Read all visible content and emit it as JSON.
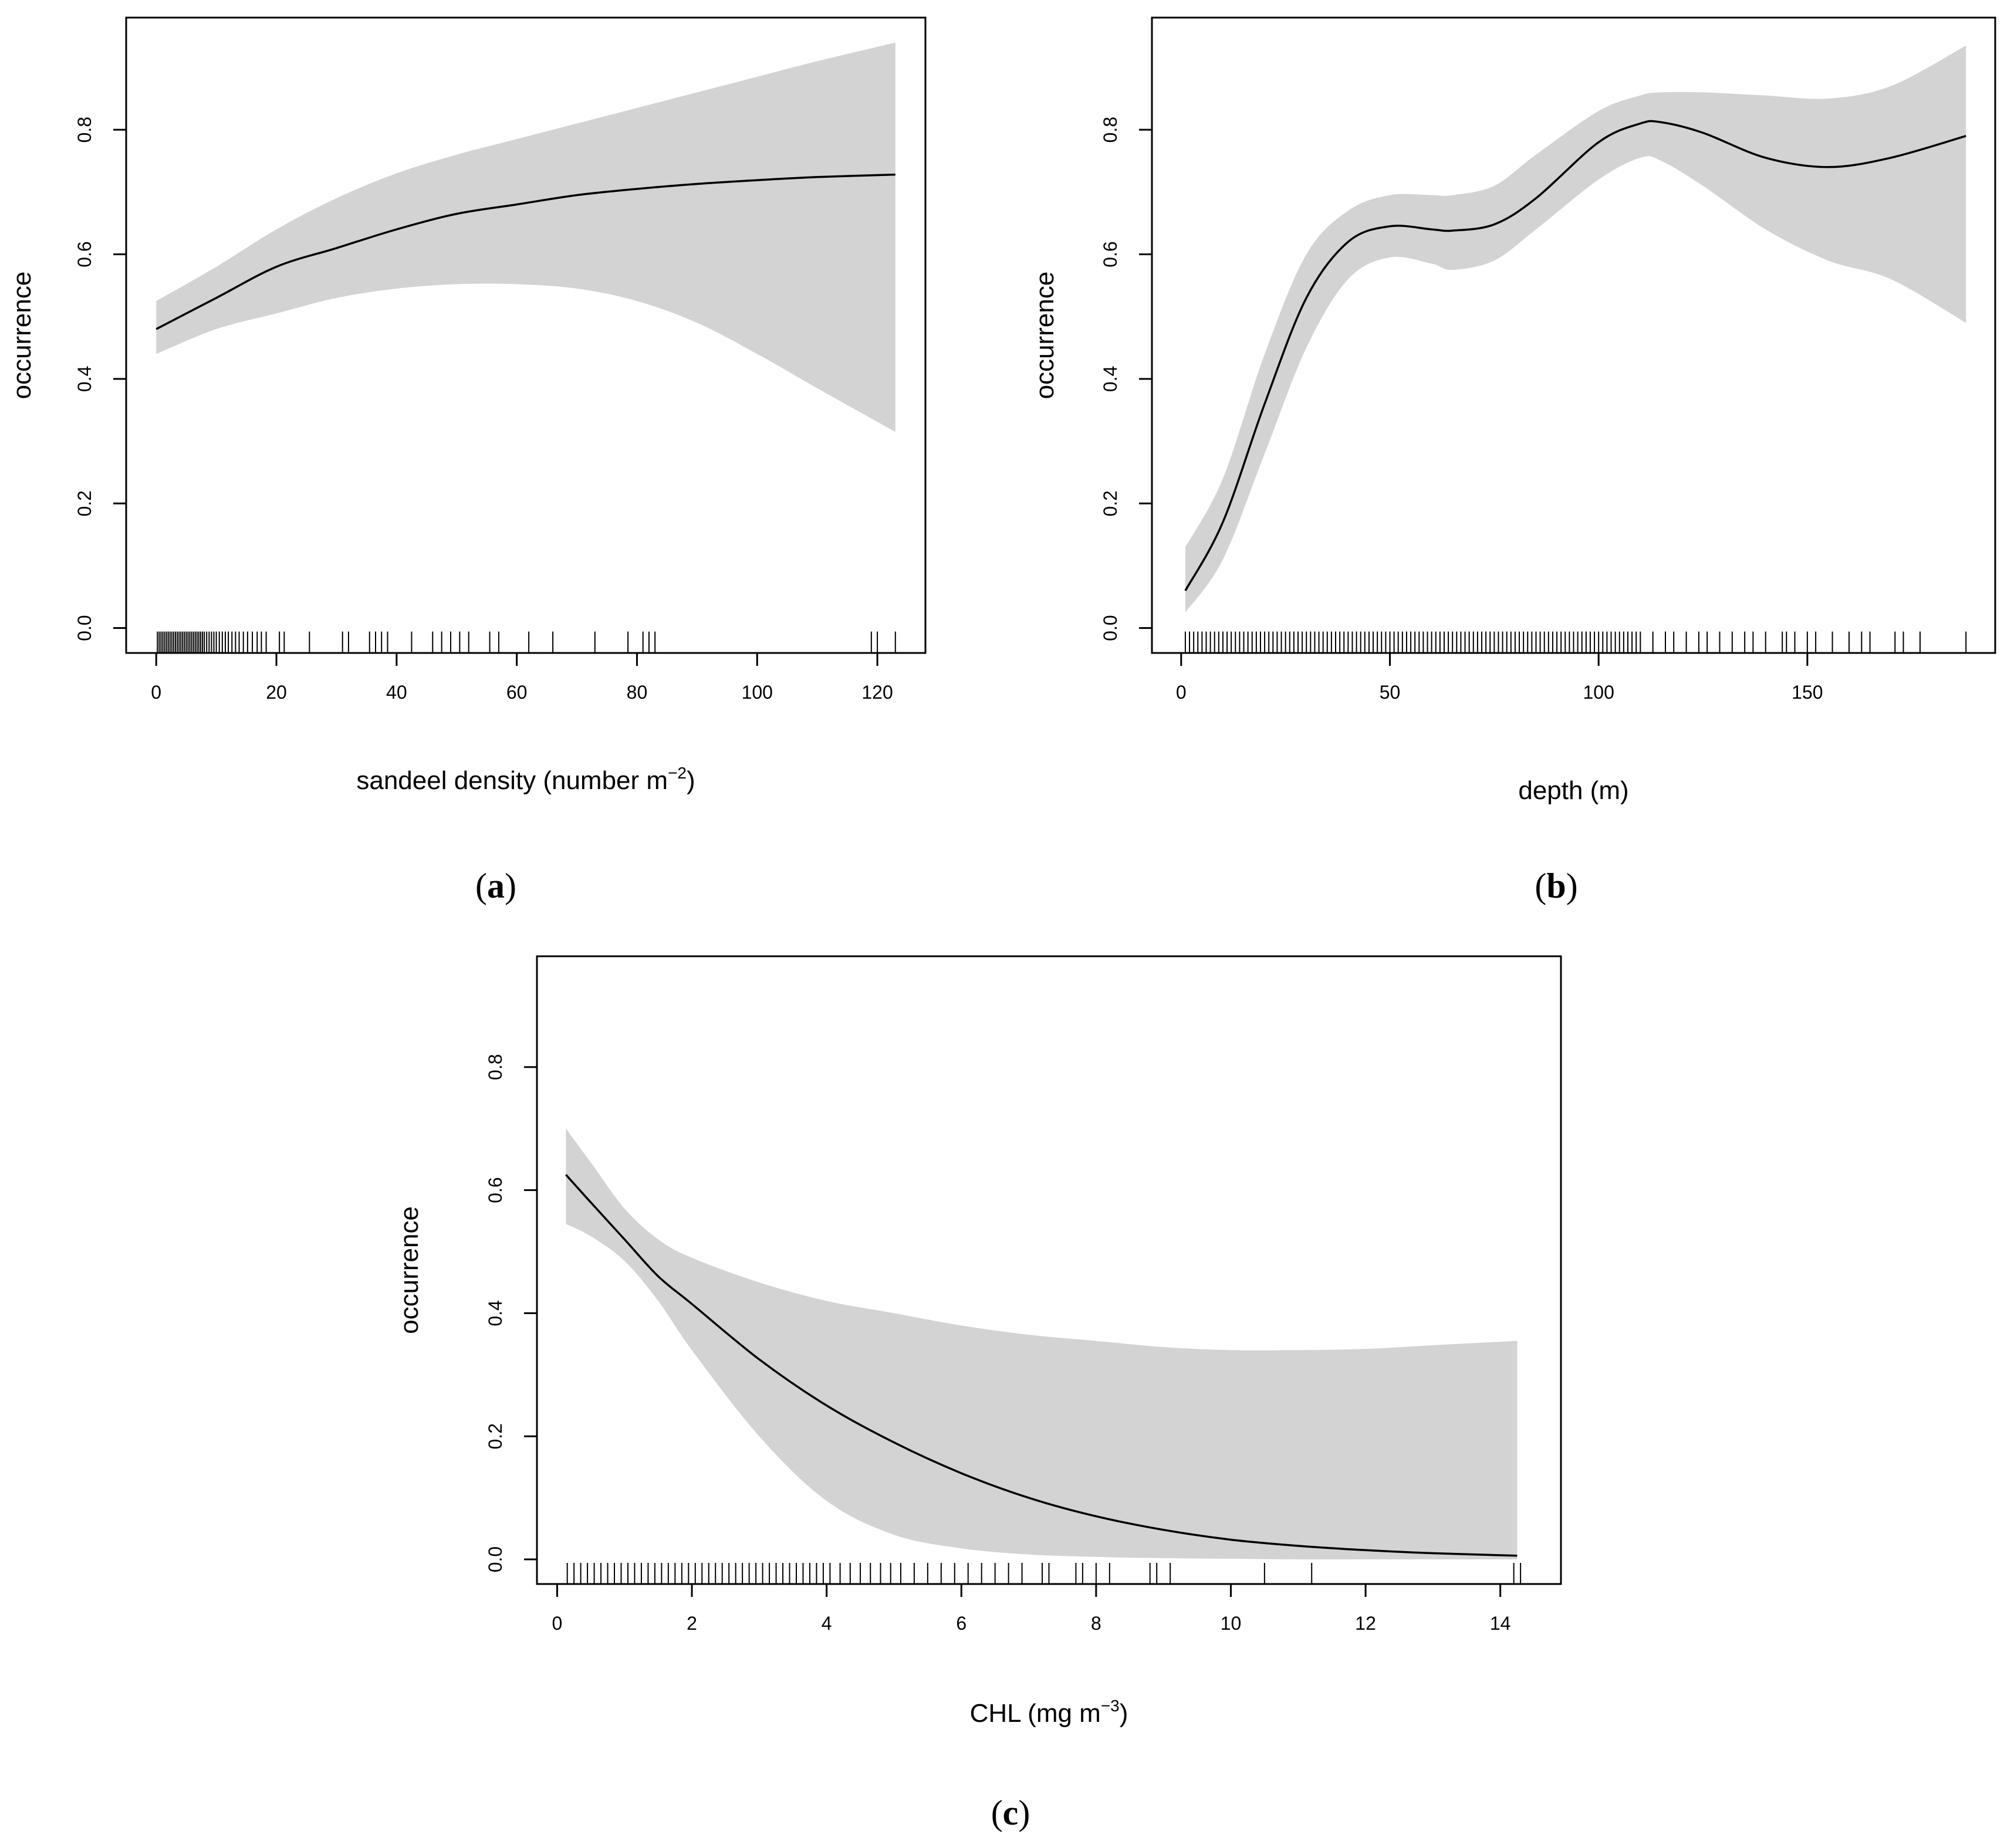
{
  "chart_data": [
    {
      "id": "a",
      "type": "line",
      "panel_label": "a",
      "xlabel": "sandeel density (number m",
      "xlabel_sup": "−2",
      "xlabel_end": ")",
      "ylabel": "occurrence",
      "xlim": [
        -5,
        128
      ],
      "ylim": [
        -0.04,
        0.98
      ],
      "xticks": [
        0,
        20,
        40,
        60,
        80,
        100,
        120
      ],
      "xtick_labels": [
        "0",
        "20",
        "40",
        "60",
        "80",
        "100",
        "120"
      ],
      "yticks": [
        0,
        0.2,
        0.4,
        0.6,
        0.8
      ],
      "ytick_labels": [
        "0.0",
        "0.2",
        "0.4",
        "0.6",
        "0.8"
      ],
      "series": [
        {
          "name": "fit",
          "x": [
            0,
            10,
            20,
            30,
            40,
            50,
            60,
            70,
            80,
            90,
            100,
            110,
            123
          ],
          "y": [
            0.48,
            0.53,
            0.58,
            0.61,
            0.64,
            0.665,
            0.68,
            0.695,
            0.705,
            0.713,
            0.719,
            0.724,
            0.728
          ]
        },
        {
          "name": "upper",
          "x": [
            0,
            10,
            20,
            30,
            40,
            50,
            60,
            70,
            80,
            90,
            100,
            110,
            123
          ],
          "y": [
            0.525,
            0.58,
            0.64,
            0.69,
            0.73,
            0.76,
            0.785,
            0.81,
            0.835,
            0.86,
            0.885,
            0.91,
            0.94
          ]
        },
        {
          "name": "lower",
          "x": [
            0,
            10,
            20,
            30,
            40,
            50,
            60,
            70,
            80,
            90,
            100,
            110,
            123
          ],
          "y": [
            0.44,
            0.48,
            0.505,
            0.53,
            0.545,
            0.552,
            0.552,
            0.545,
            0.525,
            0.49,
            0.44,
            0.385,
            0.315
          ]
        }
      ],
      "rug": [
        0.2,
        0.5,
        0.8,
        1.1,
        1.4,
        1.7,
        2.0,
        2.3,
        2.6,
        2.9,
        3.2,
        3.5,
        3.8,
        4.1,
        4.4,
        4.7,
        5.0,
        5.3,
        5.6,
        5.9,
        6.2,
        6.5,
        6.8,
        7.1,
        7.4,
        7.7,
        8.0,
        8.4,
        8.8,
        9.2,
        9.6,
        10.0,
        10.5,
        11.0,
        11.5,
        12.0,
        12.6,
        13.2,
        13.8,
        14.5,
        15.2,
        16.0,
        16.8,
        17.5,
        18.3,
        20.5,
        21.3,
        25.5,
        31.0,
        32.0,
        35.5,
        36.5,
        37.5,
        38.5,
        42.5,
        46.0,
        47.5,
        49.0,
        50.5,
        52.0,
        55.5,
        57.0,
        62.0,
        66.0,
        73.0,
        78.5,
        81.0,
        82.0,
        83.0,
        119.0,
        120.0,
        123.0
      ]
    },
    {
      "id": "b",
      "type": "line",
      "panel_label": "b",
      "xlabel": "depth (m)",
      "ylabel": "occurrence",
      "xlim": [
        -7,
        195
      ],
      "ylim": [
        -0.04,
        0.98
      ],
      "xticks": [
        0,
        50,
        100,
        150
      ],
      "xtick_labels": [
        "0",
        "50",
        "100",
        "150"
      ],
      "yticks": [
        0,
        0.2,
        0.4,
        0.6,
        0.8
      ],
      "ytick_labels": [
        "0.0",
        "0.2",
        "0.4",
        "0.6",
        "0.8"
      ],
      "series": [
        {
          "name": "fit",
          "x": [
            1,
            10,
            20,
            30,
            40,
            50,
            60,
            65,
            75,
            85,
            100,
            110,
            115,
            125,
            140,
            155,
            170,
            188
          ],
          "y": [
            0.06,
            0.17,
            0.36,
            0.53,
            0.62,
            0.645,
            0.64,
            0.638,
            0.648,
            0.69,
            0.78,
            0.81,
            0.812,
            0.795,
            0.755,
            0.74,
            0.755,
            0.79
          ]
        },
        {
          "name": "upper",
          "x": [
            1,
            10,
            20,
            30,
            40,
            50,
            60,
            65,
            75,
            85,
            100,
            110,
            115,
            125,
            140,
            155,
            170,
            188
          ],
          "y": [
            0.13,
            0.24,
            0.44,
            0.6,
            0.67,
            0.695,
            0.695,
            0.695,
            0.71,
            0.76,
            0.83,
            0.855,
            0.86,
            0.86,
            0.855,
            0.85,
            0.87,
            0.935
          ]
        },
        {
          "name": "lower",
          "x": [
            1,
            10,
            20,
            30,
            40,
            50,
            60,
            65,
            75,
            85,
            100,
            110,
            115,
            125,
            140,
            155,
            170,
            188
          ],
          "y": [
            0.025,
            0.11,
            0.28,
            0.45,
            0.56,
            0.595,
            0.585,
            0.575,
            0.59,
            0.64,
            0.72,
            0.755,
            0.75,
            0.71,
            0.64,
            0.59,
            0.56,
            0.49
          ]
        }
      ],
      "rug": [
        1,
        2,
        3,
        4,
        5,
        6,
        7,
        8,
        9,
        10,
        11,
        12,
        13,
        14,
        15,
        16,
        17,
        18,
        19,
        20,
        21,
        22,
        23,
        24,
        25,
        26,
        27,
        28,
        29,
        30,
        31,
        32,
        33,
        34,
        35,
        36,
        37,
        38,
        39,
        40,
        41,
        42,
        43,
        44,
        45,
        46,
        47,
        48,
        49,
        50,
        51,
        52,
        53,
        54,
        55,
        56,
        57,
        58,
        59,
        60,
        61,
        62,
        63,
        64,
        65,
        66,
        67,
        68,
        69,
        70,
        71,
        72,
        73,
        74,
        75,
        76,
        77,
        78,
        79,
        80,
        81,
        82,
        83,
        84,
        85,
        86,
        87,
        88,
        89,
        90,
        91,
        92,
        93,
        94,
        95,
        96,
        97,
        98,
        99,
        100,
        101,
        102,
        103,
        104,
        105,
        106,
        107,
        108,
        109,
        110,
        113,
        116,
        118,
        121,
        124,
        126,
        129,
        132,
        135,
        137,
        140,
        144,
        145,
        147,
        150,
        152,
        156,
        160,
        163,
        165,
        171,
        173,
        177,
        188
      ]
    },
    {
      "id": "c",
      "type": "line",
      "panel_label": "c",
      "xlabel": "CHL (mg m",
      "xlabel_sup": "−3",
      "xlabel_end": ")",
      "ylabel": "occurrence",
      "xlim": [
        -0.3,
        14.9
      ],
      "ylim": [
        -0.04,
        0.98
      ],
      "xticks": [
        0,
        2,
        4,
        6,
        8,
        10,
        12,
        14
      ],
      "xtick_labels": [
        "0",
        "2",
        "4",
        "6",
        "8",
        "10",
        "12",
        "14"
      ],
      "yticks": [
        0,
        0.2,
        0.4,
        0.6,
        0.8
      ],
      "ytick_labels": [
        "0.0",
        "0.2",
        "0.4",
        "0.6",
        "0.8"
      ],
      "series": [
        {
          "name": "fit",
          "x": [
            0.13,
            0.5,
            1,
            1.5,
            2,
            3,
            4,
            5,
            6,
            7,
            8,
            9,
            10,
            11,
            12,
            13,
            14.25
          ],
          "y": [
            0.625,
            0.58,
            0.52,
            0.46,
            0.415,
            0.325,
            0.25,
            0.19,
            0.14,
            0.1,
            0.07,
            0.048,
            0.032,
            0.022,
            0.015,
            0.01,
            0.006
          ]
        },
        {
          "name": "upper",
          "x": [
            0.13,
            0.5,
            1,
            1.5,
            2,
            3,
            4,
            5,
            6,
            7,
            8,
            9,
            10,
            11,
            12,
            13,
            14.25
          ],
          "y": [
            0.7,
            0.645,
            0.57,
            0.52,
            0.49,
            0.45,
            0.42,
            0.4,
            0.38,
            0.365,
            0.355,
            0.345,
            0.34,
            0.34,
            0.342,
            0.348,
            0.355
          ]
        },
        {
          "name": "lower",
          "x": [
            0.13,
            0.5,
            1,
            1.5,
            2,
            3,
            4,
            5,
            6,
            7,
            8,
            9,
            10,
            11,
            12,
            13,
            14.25
          ],
          "y": [
            0.545,
            0.525,
            0.485,
            0.42,
            0.34,
            0.2,
            0.095,
            0.04,
            0.018,
            0.008,
            0.004,
            0.002,
            0.001,
            0.0,
            0.0,
            0.0,
            0.0
          ]
        }
      ],
      "rug": [
        0.15,
        0.25,
        0.35,
        0.45,
        0.55,
        0.65,
        0.75,
        0.85,
        0.95,
        1.05,
        1.15,
        1.25,
        1.35,
        1.45,
        1.55,
        1.65,
        1.75,
        1.85,
        1.95,
        2.05,
        2.15,
        2.25,
        2.35,
        2.45,
        2.55,
        2.65,
        2.75,
        2.85,
        2.95,
        3.05,
        3.15,
        3.25,
        3.35,
        3.45,
        3.55,
        3.65,
        3.75,
        3.85,
        3.95,
        4.05,
        4.2,
        4.35,
        4.5,
        4.65,
        4.8,
        4.95,
        5.1,
        5.3,
        5.5,
        5.7,
        5.9,
        6.1,
        6.3,
        6.5,
        6.7,
        6.9,
        7.2,
        7.3,
        7.7,
        7.8,
        8.0,
        8.2,
        8.8,
        8.9,
        9.1,
        10.5,
        11.2,
        14.2,
        14.3
      ]
    }
  ]
}
